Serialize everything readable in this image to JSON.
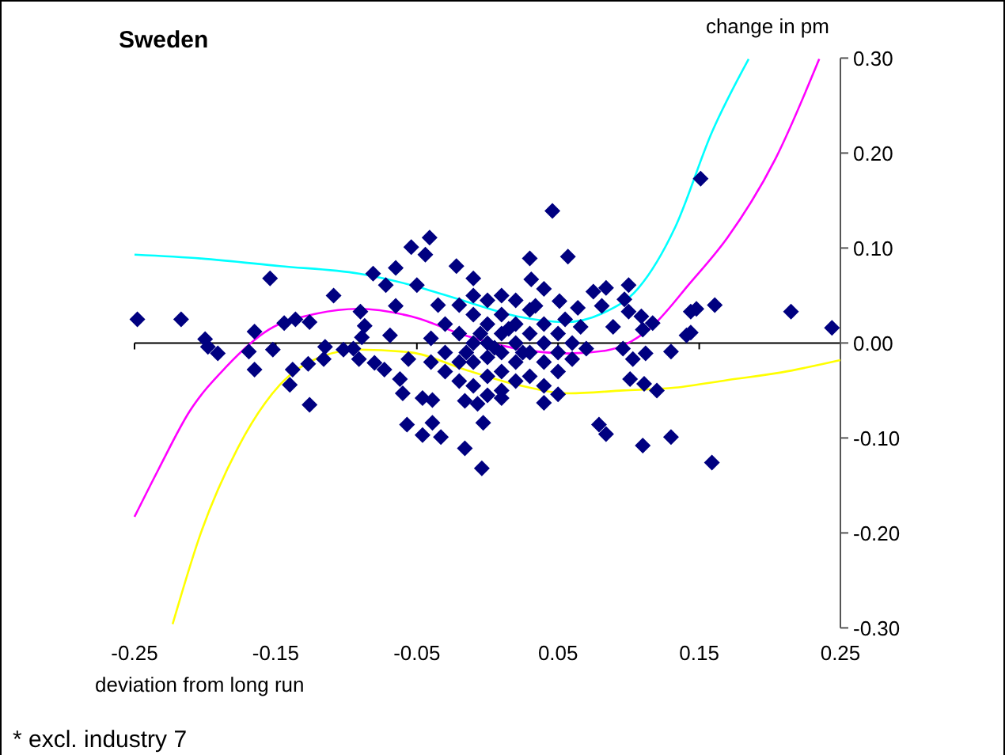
{
  "chart_data": {
    "type": "scatter",
    "title": "Sweden",
    "xlabel": "deviation from long run",
    "ylabel": "change in pm",
    "annotations": [
      "* excl. industry 7"
    ],
    "xlim": [
      -0.25,
      0.25
    ],
    "xticks": [
      -0.25,
      -0.15,
      -0.05,
      0.05,
      0.15,
      0.25
    ],
    "ylim": [
      -0.3,
      0.3
    ],
    "yticks": [
      {
        "value": 0.3,
        "label": "0.30"
      },
      {
        "value": 0.2,
        "label": "0.20"
      },
      {
        "value": 0.1,
        "label": "0.10"
      },
      {
        "value": 0,
        "label": "0.00"
      },
      {
        "value": -0.1,
        "label": "-0.10"
      },
      {
        "value": -0.2,
        "label": "-0.20"
      },
      {
        "value": -0.3,
        "label": "-0.30"
      }
    ],
    "series": [
      {
        "marker": "diamond",
        "color": "#000080",
        "x": [
          -0.248,
          -0.217,
          -0.154,
          -0.2,
          -0.198,
          -0.191,
          -0.169,
          -0.165,
          -0.165,
          -0.152,
          -0.144,
          -0.136,
          -0.126,
          -0.138,
          -0.14,
          -0.127,
          -0.126,
          -0.115,
          -0.116,
          -0.109,
          -0.102,
          -0.095,
          -0.091,
          -0.09,
          -0.087,
          -0.089,
          -0.081,
          -0.08,
          -0.073,
          -0.072,
          -0.069,
          -0.065,
          -0.065,
          -0.062,
          -0.06,
          -0.057,
          -0.054,
          -0.044,
          -0.041,
          -0.05,
          -0.056,
          -0.046,
          -0.046,
          -0.039,
          -0.033,
          -0.039,
          -0.016,
          -0.004,
          -0.003,
          -0.022,
          -0.01,
          -0.016,
          -0.007,
          0.01,
          0.03,
          0.031,
          0.04,
          0.046,
          0.057,
          0.051,
          0.04,
          0.05,
          0.034,
          0.064,
          0.075,
          0.084,
          0.081,
          0.089,
          0.1,
          0.097,
          0.1,
          0.109,
          0.117,
          0.11,
          0.096,
          0.103,
          0.112,
          0.13,
          0.101,
          0.111,
          0.12,
          0.079,
          0.084,
          0.11,
          0.13,
          0.159,
          0.151,
          0.144,
          0.148,
          0.161,
          0.141,
          0.144,
          0.215,
          0.244,
          0.07,
          0.06,
          0.066,
          -0.03,
          -0.03,
          -0.03,
          -0.02,
          -0.02,
          -0.02,
          -0.02,
          -0.01,
          -0.01,
          -0.01,
          -0.01,
          -0.01,
          0,
          0,
          0,
          0,
          0,
          0,
          0.01,
          0.01,
          0.01,
          0.01,
          0.01,
          0.01,
          0.02,
          0.02,
          0.02,
          0.02,
          0.02,
          0.03,
          0.03,
          0.03,
          0.03,
          0.04,
          0.04,
          0.04,
          0.04,
          0.05,
          0.05,
          0.05,
          -0.04,
          -0.04,
          -0.035,
          0.055,
          0.06,
          -0.005,
          0.005,
          0.015,
          0.025,
          -0.015
        ],
        "values": [
          0.025,
          0.025,
          0.068,
          0.004,
          -0.004,
          -0.011,
          -0.009,
          0.012,
          -0.028,
          -0.007,
          0.021,
          0.025,
          0.022,
          -0.028,
          -0.044,
          -0.022,
          -0.065,
          -0.004,
          -0.017,
          0.05,
          -0.007,
          -0.006,
          -0.017,
          0.033,
          0.018,
          0.006,
          0.073,
          -0.021,
          -0.028,
          0.061,
          0.008,
          0.039,
          0.079,
          -0.038,
          -0.053,
          -0.086,
          0.101,
          0.093,
          0.111,
          0.061,
          -0.017,
          -0.058,
          -0.097,
          -0.084,
          -0.099,
          -0.06,
          -0.111,
          -0.132,
          -0.084,
          0.081,
          0.068,
          -0.061,
          -0.064,
          -0.058,
          0.089,
          0.067,
          0.057,
          0.139,
          0.091,
          0.044,
          -0.063,
          -0.054,
          0.039,
          0.037,
          0.054,
          0.058,
          0.039,
          0.017,
          0.061,
          0.046,
          0.033,
          0.028,
          0.021,
          0.014,
          -0.006,
          -0.017,
          -0.011,
          -0.009,
          -0.038,
          -0.043,
          -0.05,
          -0.086,
          -0.096,
          -0.108,
          -0.099,
          -0.126,
          0.173,
          0.033,
          0.036,
          0.04,
          0.008,
          0.011,
          0.033,
          0.016,
          -0.006,
          -0.017,
          0.017,
          0.02,
          -0.01,
          -0.03,
          0.04,
          0.01,
          -0.02,
          -0.04,
          0.05,
          0.03,
          0,
          -0.02,
          -0.045,
          0.045,
          0.02,
          0,
          -0.015,
          -0.035,
          -0.055,
          0.05,
          0.03,
          0.01,
          -0.01,
          -0.03,
          -0.05,
          0.045,
          0.02,
          0,
          -0.02,
          -0.04,
          0.035,
          0.01,
          -0.01,
          -0.035,
          0.02,
          0,
          -0.02,
          -0.045,
          0.01,
          -0.01,
          -0.03,
          0.005,
          -0.02,
          0.04,
          0.025,
          0,
          0.01,
          -0.005,
          0.015,
          -0.01,
          -0.01
        ]
      },
      {
        "type": "line",
        "color": "#00ffff",
        "x": [
          -0.25,
          -0.203,
          -0.147,
          -0.091,
          -0.054,
          -0.016,
          0.021,
          0.055,
          0.081,
          0.107,
          0.133,
          0.159,
          0.185
        ],
        "values": [
          0.093,
          0.089,
          0.081,
          0.073,
          0.061,
          0.044,
          0.028,
          0.022,
          0.031,
          0.058,
          0.122,
          0.222,
          0.299
        ]
      },
      {
        "type": "line",
        "color": "#ff00ff",
        "x": [
          -0.25,
          -0.233,
          -0.211,
          -0.185,
          -0.155,
          -0.121,
          -0.091,
          -0.054,
          -0.016,
          0.021,
          0.058,
          0.084,
          0.114,
          0.144,
          0.17,
          0.204,
          0.235
        ],
        "values": [
          -0.183,
          -0.133,
          -0.072,
          -0.025,
          0.014,
          0.031,
          0.036,
          0.028,
          0.008,
          -0.006,
          -0.011,
          -0.008,
          0.014,
          0.064,
          0.111,
          0.194,
          0.299
        ]
      },
      {
        "type": "line",
        "color": "#ffff00",
        "x": [
          -0.223,
          -0.203,
          -0.177,
          -0.147,
          -0.117,
          -0.091,
          -0.054,
          -0.016,
          0.021,
          0.058,
          0.096,
          0.133,
          0.17,
          0.208,
          0.25
        ],
        "values": [
          -0.296,
          -0.2,
          -0.111,
          -0.044,
          -0.014,
          -0.007,
          -0.01,
          -0.028,
          -0.044,
          -0.053,
          -0.05,
          -0.047,
          -0.039,
          -0.031,
          -0.018
        ]
      }
    ]
  }
}
